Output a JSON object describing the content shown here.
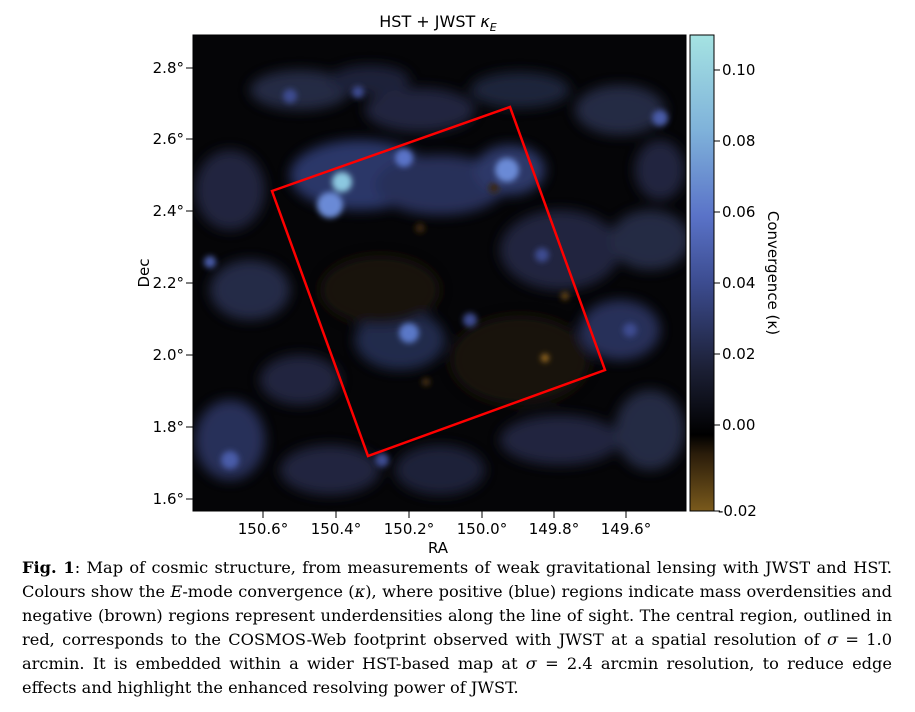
{
  "figure": {
    "title_main": "HST + JWST ",
    "title_symbol": "κ",
    "title_sub": "E",
    "xlabel": "RA",
    "ylabel": "Dec",
    "colorbar_label": "Convergence (κ)",
    "x_ticks": [
      "150.6°",
      "150.4°",
      "150.2°",
      "150.0°",
      "149.8°",
      "149.6°"
    ],
    "y_ticks": [
      "2.8°",
      "2.6°",
      "2.4°",
      "2.2°",
      "2.0°",
      "1.8°",
      "1.6°"
    ],
    "cbar_ticks": [
      "0.10",
      "0.08",
      "0.06",
      "0.04",
      "0.02",
      "0.00",
      "-0.02"
    ]
  },
  "chart_data": {
    "type": "heatmap",
    "title": "HST + JWST κE",
    "xlabel": "RA",
    "ylabel": "Dec",
    "x_reversed": true,
    "colorbar": {
      "label": "Convergence (κ)",
      "range": [
        -0.022,
        0.11
      ],
      "ticks": [
        0.1,
        0.08,
        0.06,
        0.04,
        0.02,
        0.0,
        -0.02
      ],
      "colors": {
        "positive": "#a5e3e2",
        "mid_positive": "#5a73c8",
        "zero": "#000000",
        "negative": "#7a5a1c"
      }
    },
    "footprint_outline": {
      "color": "#ff0000",
      "corners_ra_dec": [
        [
          150.58,
          2.45
        ],
        [
          149.93,
          2.69
        ],
        [
          149.66,
          1.96
        ],
        [
          150.31,
          1.72
        ]
      ]
    },
    "notable_peaks": [
      {
        "ra": 150.4,
        "dec": 2.48,
        "kappa": 0.1
      },
      {
        "ra": 150.43,
        "dec": 2.43,
        "kappa": 0.06
      },
      {
        "ra": 150.22,
        "dec": 2.55,
        "kappa": 0.05
      },
      {
        "ra": 149.95,
        "dec": 2.52,
        "kappa": 0.07
      },
      {
        "ra": 150.19,
        "dec": 2.06,
        "kappa": 0.05
      },
      {
        "ra": 149.82,
        "dec": 2.29,
        "kappa": 0.03
      },
      {
        "ra": 149.82,
        "dec": 1.98,
        "kappa": -0.02
      }
    ]
  },
  "caption": {
    "label": "Fig. 1",
    "text_1": ": Map of cosmic structure, from measurements of weak gravitational lensing with JWST and HST. Colours show the ",
    "italic_1": "E",
    "text_2": "-mode convergence (",
    "italic_2": "κ",
    "text_3": "), where positive (blue) regions indicate mass overdensities and negative (brown) regions represent underdensities along the line of sight. The central region, outlined in red, corresponds to the COSMOS-Web footprint observed with JWST at a spatial resolution of ",
    "italic_3": "σ",
    "text_4": " = 1.0 arcmin. It is embedded within a wider HST-based map at ",
    "italic_4": "σ",
    "text_5": " = 2.4 arcmin resolution, to reduce edge effects and highlight the enhanced resolving power of JWST."
  }
}
